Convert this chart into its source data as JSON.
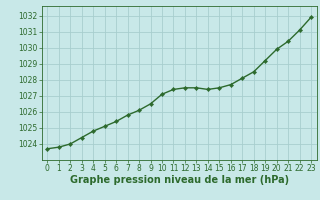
{
  "x": [
    0,
    1,
    2,
    3,
    4,
    5,
    6,
    7,
    8,
    9,
    10,
    11,
    12,
    13,
    14,
    15,
    16,
    17,
    18,
    19,
    20,
    21,
    22,
    23
  ],
  "y": [
    1023.7,
    1023.8,
    1024.0,
    1024.4,
    1024.8,
    1025.1,
    1025.4,
    1025.8,
    1026.1,
    1026.5,
    1027.1,
    1027.4,
    1027.5,
    1027.5,
    1027.4,
    1027.5,
    1027.7,
    1028.1,
    1028.5,
    1029.2,
    1029.9,
    1030.4,
    1031.1,
    1031.9
  ],
  "line_color": "#2d6a2d",
  "marker": "D",
  "marker_size": 2.2,
  "line_width": 1.0,
  "bg_color": "#c8e8e8",
  "grid_color": "#a8cece",
  "xlabel": "Graphe pression niveau de la mer (hPa)",
  "ylabel": "",
  "xlim": [
    -0.5,
    23.5
  ],
  "ylim": [
    1023.0,
    1032.6
  ],
  "yticks": [
    1024,
    1025,
    1026,
    1027,
    1028,
    1029,
    1030,
    1031,
    1032
  ],
  "xticks": [
    0,
    1,
    2,
    3,
    4,
    5,
    6,
    7,
    8,
    9,
    10,
    11,
    12,
    13,
    14,
    15,
    16,
    17,
    18,
    19,
    20,
    21,
    22,
    23
  ],
  "tick_color": "#2d6a2d",
  "tick_fontsize": 5.5,
  "xlabel_fontsize": 7.0,
  "xlabel_color": "#2d6a2d"
}
